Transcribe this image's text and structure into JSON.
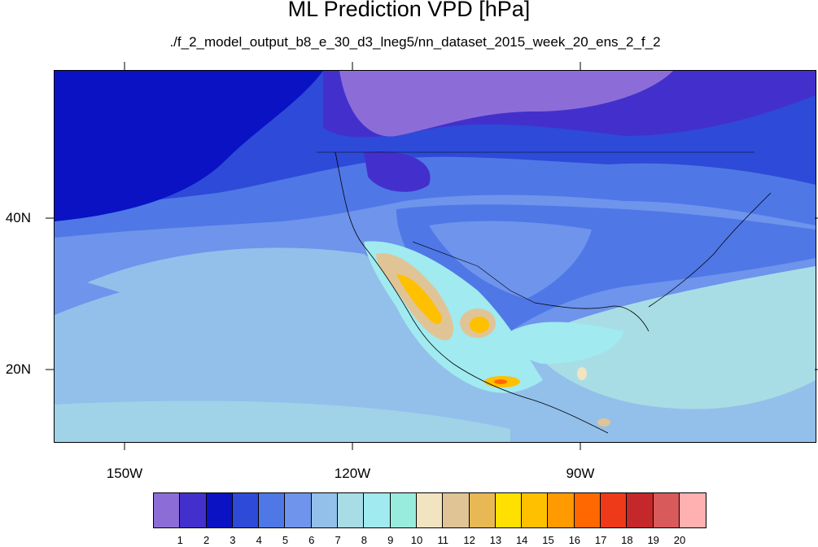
{
  "title": "ML Prediction VPD [hPa]",
  "subtitle": "./f_2_model_output_b8_e_30_d3_lneg5/nn_dataset_2015_week_20_ens_2_f_2",
  "lon_labels": [
    "150W",
    "120W",
    "90W"
  ],
  "lat_labels": [
    "40N",
    "20N"
  ],
  "colorbar": {
    "levels": [
      "1",
      "2",
      "3",
      "4",
      "5",
      "6",
      "7",
      "8",
      "9",
      "10",
      "11",
      "12",
      "13",
      "14",
      "15",
      "16",
      "17",
      "18",
      "19",
      "20"
    ],
    "colors": [
      "#8c6dd8",
      "#4330cc",
      "#0a12c4",
      "#2e4ad8",
      "#4f78e6",
      "#6e94ec",
      "#93c0ea",
      "#a8dde6",
      "#a0eaf0",
      "#98ecde",
      "#f2e4c0",
      "#e0c496",
      "#e8b855",
      "#ffe000",
      "#ffc000",
      "#ff9a00",
      "#ff6800",
      "#ee3a18",
      "#c4282a",
      "#d85a5a",
      "#ffb0b0"
    ]
  }
}
